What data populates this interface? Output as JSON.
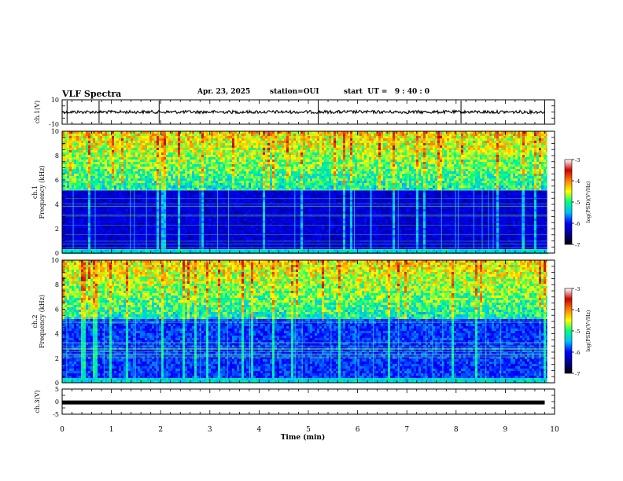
{
  "header": {
    "title": "VLF Spectra",
    "date": "Apr. 23, 2025",
    "station": "station=OUI",
    "start": "start  UT =   9 : 40 : 0"
  },
  "chart_data": {
    "type": "heatmap",
    "x_axis": {
      "label": "Time (min)",
      "range": [
        0,
        10
      ],
      "ticks": [
        "0",
        "1",
        "2",
        "3",
        "4",
        "5",
        "6",
        "7",
        "8",
        "9",
        "10"
      ]
    },
    "panels": [
      {
        "id": "ch1-waveform",
        "type": "line",
        "ylabel": "ch.1(V)",
        "ylim": [
          -10,
          10
        ],
        "yticks": [
          "10",
          "-10"
        ],
        "baseline_value": 0,
        "data_end_min": 9.8
      },
      {
        "id": "ch1-spectrogram",
        "type": "heatmap",
        "ylabel_line1": "ch.1",
        "ylabel_line2": "Frequency (kHz)",
        "ylim": [
          0,
          10
        ],
        "yticks": [
          "0",
          "2",
          "4",
          "6",
          "8",
          "10"
        ],
        "colorbar": {
          "label": "log(PSD)(V²/Hz)",
          "range": [
            -7,
            -3
          ],
          "ticks": [
            "-3",
            "-4",
            "-5",
            "-6",
            "-7"
          ]
        }
      },
      {
        "id": "ch2-spectrogram",
        "type": "heatmap",
        "ylabel_line1": "ch.2",
        "ylabel_line2": "Frequency (kHz)",
        "ylim": [
          0,
          10
        ],
        "yticks": [
          "0",
          "2",
          "4",
          "6",
          "8",
          "10"
        ],
        "colorbar": {
          "label": "log(PSD)(V²/Hz)",
          "range": [
            -7,
            -3
          ],
          "ticks": [
            "-3",
            "-4",
            "-5",
            "-6",
            "-7"
          ]
        }
      },
      {
        "id": "ch3-waveform",
        "type": "line",
        "ylabel": "ch.3(V)",
        "ylim": [
          -5,
          5
        ],
        "yticks": [
          "5",
          "0",
          "-5"
        ],
        "baseline_value": -0.5,
        "data_end_min": 9.8
      }
    ],
    "colormap": [
      "#000000",
      "#00008f",
      "#0000ff",
      "#00bfff",
      "#00ff80",
      "#ffff00",
      "#ff8000",
      "#cc0000",
      "#ffffff"
    ],
    "legend": "right",
    "grid": false
  }
}
